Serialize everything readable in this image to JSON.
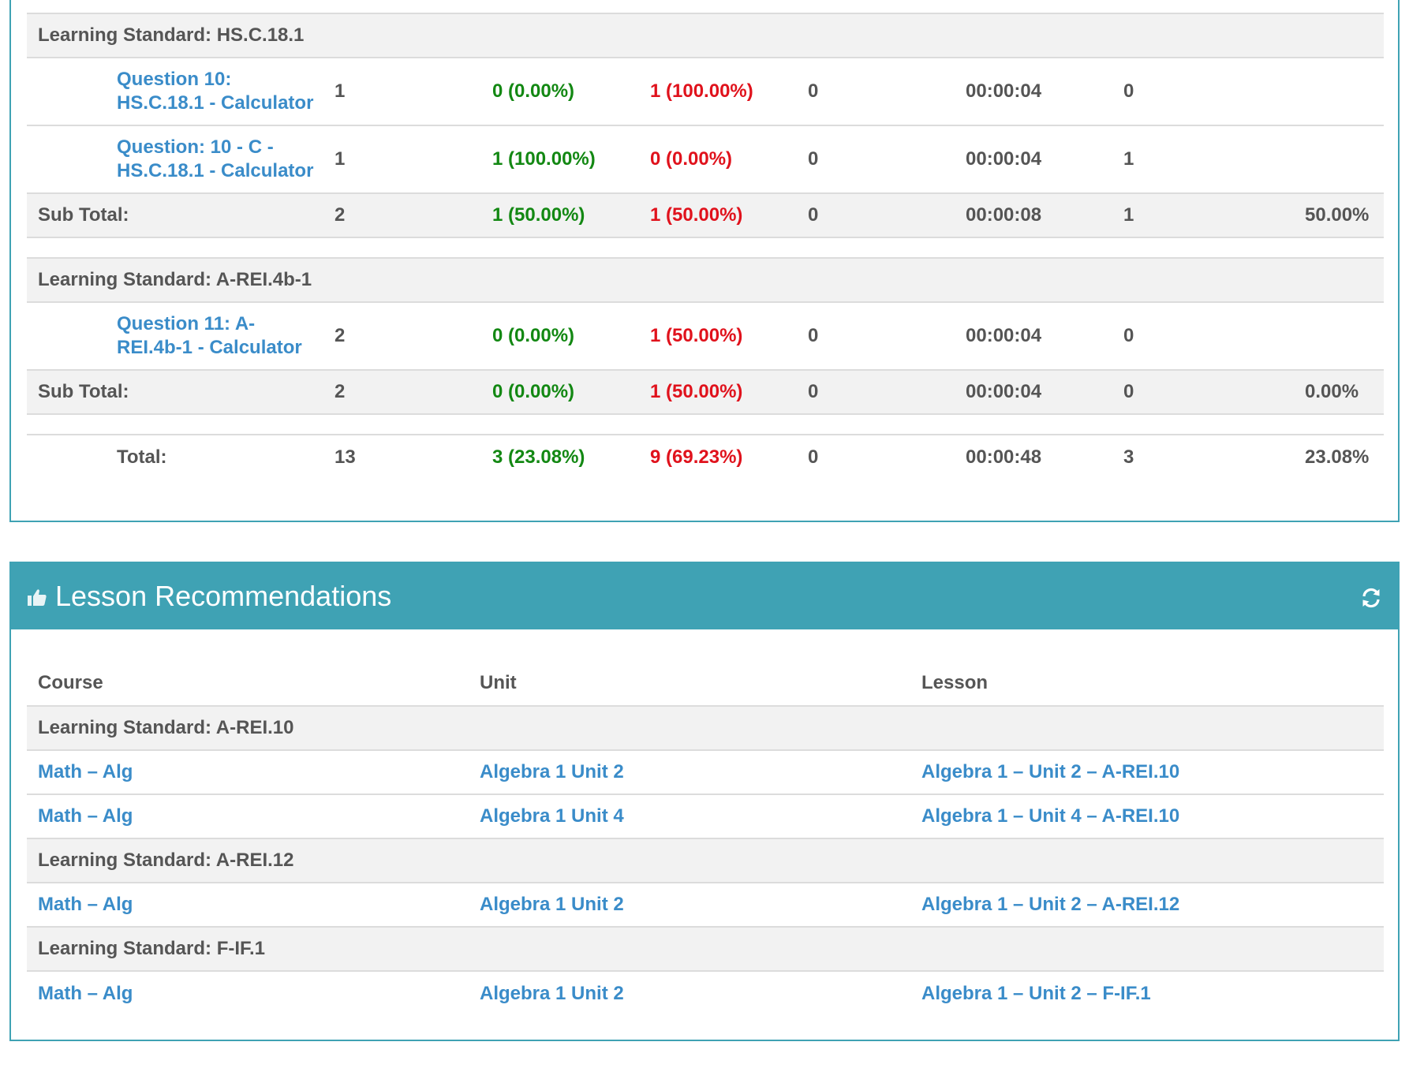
{
  "report": {
    "standard1": {
      "label": "Learning Standard: HS.C.18.1",
      "questions": [
        {
          "title_line1": "Question 10:",
          "title_line2": "HS.C.18.1 - Calculator",
          "attempts": "1",
          "correct": "0 (0.00%)",
          "incorrect": "1 (100.00%)",
          "skipped": "0",
          "time": "00:00:04",
          "score": "0"
        },
        {
          "title_line1": "Question: 10 - C -",
          "title_line2": "HS.C.18.1 - Calculator",
          "attempts": "1",
          "correct": "1 (100.00%)",
          "incorrect": "0 (0.00%)",
          "skipped": "0",
          "time": "00:00:04",
          "score": "1"
        }
      ],
      "subtotal": {
        "label": "Sub Total:",
        "attempts": "2",
        "correct": "1 (50.00%)",
        "incorrect": "1 (50.00%)",
        "skipped": "0",
        "time": "00:00:08",
        "score": "1",
        "percent": "50.00%"
      }
    },
    "standard2": {
      "label": "Learning Standard: A-REI.4b-1",
      "questions": [
        {
          "title_line1": "Question 11: A-",
          "title_line2": "REI.4b-1 - Calculator",
          "attempts": "2",
          "correct": "0 (0.00%)",
          "incorrect": "1 (50.00%)",
          "skipped": "0",
          "time": "00:00:04",
          "score": "0"
        }
      ],
      "subtotal": {
        "label": "Sub Total:",
        "attempts": "2",
        "correct": "0 (0.00%)",
        "incorrect": "1 (50.00%)",
        "skipped": "0",
        "time": "00:00:04",
        "score": "0",
        "percent": "0.00%"
      }
    },
    "total": {
      "label": "Total:",
      "attempts": "13",
      "correct": "3 (23.08%)",
      "incorrect": "9 (69.23%)",
      "skipped": "0",
      "time": "00:00:48",
      "score": "3",
      "percent": "23.08%"
    }
  },
  "lessons": {
    "title": "Lesson Recommendations",
    "header_icon": "thumbs-up-icon",
    "refresh_icon": "refresh-icon",
    "columns": {
      "course": "Course",
      "unit": "Unit",
      "lesson": "Lesson"
    },
    "groups": [
      {
        "standard": "Learning Standard: A-REI.10",
        "rows": [
          {
            "course": "Math – Alg",
            "unit": "Algebra 1 Unit 2",
            "lesson": "Algebra 1 – Unit 2 – A-REI.10"
          },
          {
            "course": "Math – Alg",
            "unit": "Algebra 1 Unit 4",
            "lesson": "Algebra 1 – Unit 4 – A-REI.10"
          }
        ]
      },
      {
        "standard": "Learning Standard: A-REI.12",
        "rows": [
          {
            "course": "Math – Alg",
            "unit": "Algebra 1 Unit 2",
            "lesson": "Algebra 1 – Unit 2 – A-REI.12"
          }
        ]
      },
      {
        "standard": "Learning Standard: F-IF.1",
        "rows": [
          {
            "course": "Math – Alg",
            "unit": "Algebra 1 Unit 2",
            "lesson": "Algebra 1 – Unit 2 – F-IF.1"
          }
        ]
      }
    ]
  },
  "colors": {
    "accent": "#3fa2b4",
    "link": "#3a8cc9",
    "correct": "#138813",
    "incorrect": "#e0121c"
  }
}
